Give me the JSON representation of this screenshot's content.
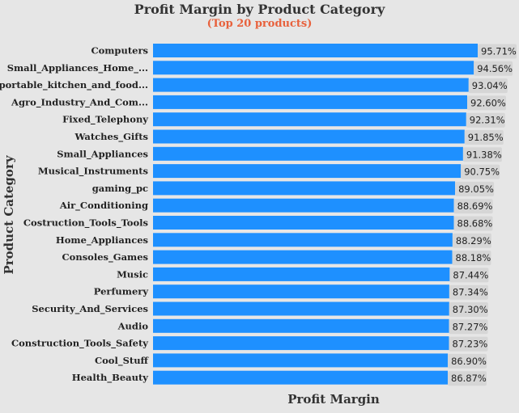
{
  "chart_data": {
    "type": "bar",
    "orientation": "horizontal",
    "title": "Profit Margin by Product Category",
    "subtitle": "(Top 20 products)",
    "xlabel": "Profit Margin",
    "ylabel": "Product Category",
    "xlim": [
      0,
      95.71
    ],
    "grid": false,
    "legend": "none",
    "categories": [
      "Computers",
      "Small_Appliances_Home_...",
      "portable_kitchen_and_food...",
      "Agro_Industry_And_Com...",
      "Fixed_Telephony",
      "Watches_Gifts",
      "Small_Appliances",
      "Musical_Instruments",
      "gaming_pc",
      "Air_Conditioning",
      "Costruction_Tools_Tools",
      "Home_Appliances",
      "Consoles_Games",
      "Music",
      "Perfumery",
      "Security_And_Services",
      "Audio",
      "Construction_Tools_Safety",
      "Cool_Stuff",
      "Health_Beauty"
    ],
    "values": [
      95.71,
      94.56,
      93.04,
      92.6,
      92.31,
      91.85,
      91.38,
      90.75,
      89.05,
      88.69,
      88.68,
      88.29,
      88.18,
      87.44,
      87.34,
      87.3,
      87.27,
      87.23,
      86.9,
      86.87
    ],
    "value_labels": [
      "95.71%",
      "94.56%",
      "93.04%",
      "92.60%",
      "92.31%",
      "91.85%",
      "91.38%",
      "90.75%",
      "89.05%",
      "88.69%",
      "88.68%",
      "88.29%",
      "88.18%",
      "87.44%",
      "87.34%",
      "87.30%",
      "87.27%",
      "87.23%",
      "86.90%",
      "86.87%"
    ],
    "colors": {
      "bar": "#1e90ff",
      "label_box": "#d6d6d6",
      "background": "#e6e6e6",
      "subtitle": "#e8613c"
    }
  }
}
